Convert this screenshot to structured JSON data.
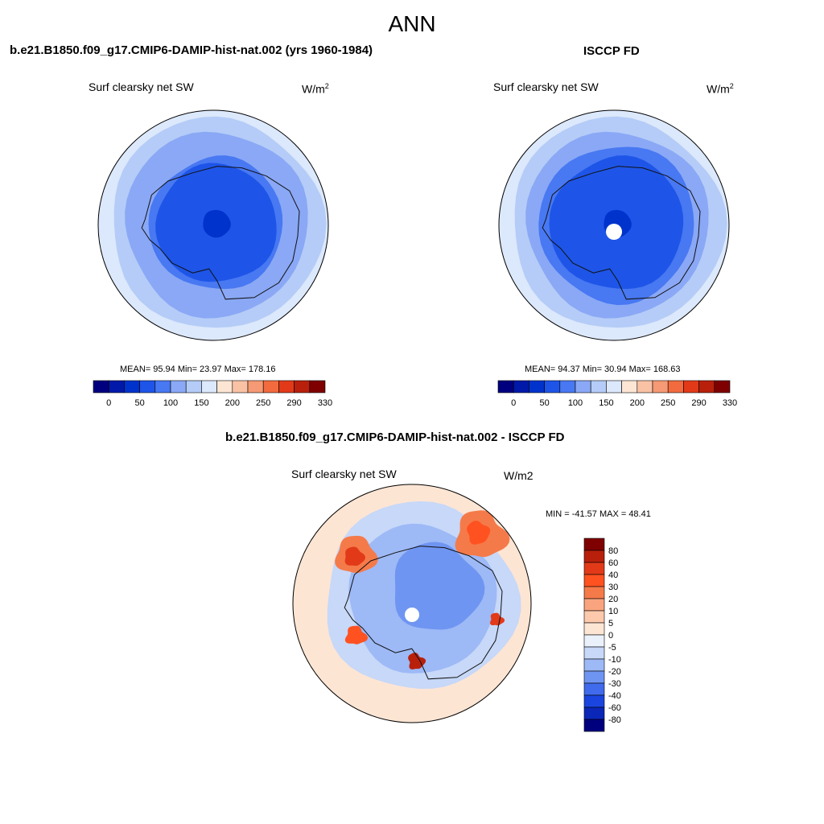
{
  "figure": {
    "season": "ANN"
  },
  "panels": {
    "test": {
      "title": "b.e21.B1850.f09_g17.CMIP6-DAMIP-hist-nat.002 (yrs 1960-1984)",
      "variable": "Surf clearsky net SW",
      "units_base": "W/m",
      "units_exp": "2",
      "stats": "MEAN=  95.94  Min=  23.97  Max= 178.16"
    },
    "ref": {
      "title": "ISCCP FD",
      "variable": "Surf clearsky net SW",
      "units_base": "W/m",
      "units_exp": "2",
      "stats": "MEAN=  94.37  Min=  30.94  Max= 168.63"
    },
    "diff": {
      "title": "b.e21.B1850.f09_g17.CMIP6-DAMIP-hist-nat.002 - ISCCP FD",
      "variable": "Surf clearsky net SW",
      "units": "W/m2",
      "stats": "MIN = -41.57 MAX =  48.41"
    }
  },
  "chart_data": [
    {
      "type": "heatmap",
      "projection": "south-polar-stereographic",
      "title": "b.e21.B1850.f09_g17.CMIP6-DAMIP-hist-nat.002 (yrs 1960-1984)",
      "variable": "Surf clearsky net SW",
      "units": "W/m2",
      "mean": 95.94,
      "min": 23.97,
      "max": 178.16,
      "colorbar_levels": [
        0,
        25,
        50,
        75,
        100,
        125,
        150,
        175,
        200,
        225,
        250,
        270,
        290,
        310,
        330
      ],
      "colorbar_labels": [
        "0",
        "50",
        "100",
        "150",
        "200",
        "250",
        "290",
        "330"
      ],
      "zone_values": [
        170,
        140,
        120,
        100,
        75,
        50,
        30
      ]
    },
    {
      "type": "heatmap",
      "projection": "south-polar-stereographic",
      "title": "ISCCP FD",
      "variable": "Surf clearsky net SW",
      "units": "W/m2",
      "mean": 94.37,
      "min": 30.94,
      "max": 168.63,
      "colorbar_levels": [
        0,
        25,
        50,
        75,
        100,
        125,
        150,
        175,
        200,
        225,
        250,
        270,
        290,
        310,
        330
      ],
      "colorbar_labels": [
        "0",
        "50",
        "100",
        "150",
        "200",
        "250",
        "290",
        "330"
      ],
      "zone_values": [
        160,
        130,
        110,
        90,
        70,
        50,
        40
      ]
    },
    {
      "type": "heatmap",
      "projection": "south-polar-stereographic",
      "title": "b.e21.B1850.f09_g17.CMIP6-DAMIP-hist-nat.002 - ISCCP FD",
      "variable": "Surf clearsky net SW",
      "units": "W/m2",
      "min": -41.57,
      "max": 48.41,
      "colorbar_labels": [
        "80",
        "60",
        "40",
        "30",
        "20",
        "10",
        "5",
        "0",
        "-5",
        "-10",
        "-20",
        "-30",
        "-40",
        "-60",
        "-80"
      ]
    }
  ],
  "colormaps": {
    "abs": [
      "#00007f",
      "#0019a9",
      "#0033cc",
      "#1e55e8",
      "#4878f2",
      "#8aa8f5",
      "#b4ccf7",
      "#dce8fb",
      "#fde5d4",
      "#f9c2a5",
      "#f59a74",
      "#f26b3f",
      "#e23a19",
      "#b8200c",
      "#7f0000"
    ],
    "diff": [
      "#7f0000",
      "#b8200c",
      "#e23a19",
      "#ff5220",
      "#f57a4a",
      "#f9a47e",
      "#fcc9ac",
      "#fde5d4",
      "#ebf1fb",
      "#c7d8f8",
      "#9db9f6",
      "#6f95f2",
      "#3f6bec",
      "#1b45df",
      "#0a27b8",
      "#00007f"
    ]
  }
}
